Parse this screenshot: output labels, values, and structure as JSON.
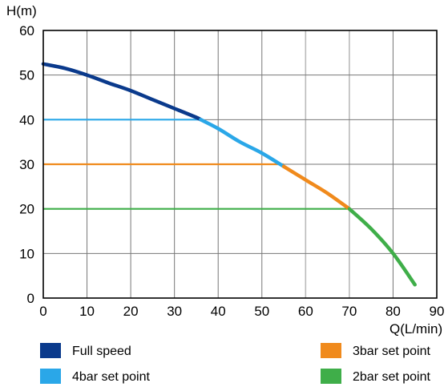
{
  "chart_data": {
    "type": "line",
    "xlabel": "Q(L/min)",
    "ylabel": "H(m)",
    "xlim": [
      0,
      90
    ],
    "ylim": [
      0,
      60
    ],
    "xticks": [
      0,
      10,
      20,
      30,
      40,
      50,
      60,
      70,
      80,
      90
    ],
    "yticks": [
      0,
      10,
      20,
      30,
      40,
      50,
      60
    ],
    "grid": true,
    "legend_position": "bottom",
    "colors": {
      "full_speed": "#0a3a8c",
      "bar4": "#2aa7e8",
      "bar3": "#f08a1c",
      "bar2": "#3fae49",
      "grid": "#777777",
      "grid_light": "#bbbbbb"
    },
    "curve": {
      "x": [
        0,
        5,
        10,
        15,
        20,
        25,
        30,
        35,
        40,
        45,
        50,
        55,
        60,
        65,
        70,
        75,
        80,
        85
      ],
      "y": [
        52.5,
        51.5,
        50.0,
        48.2,
        46.5,
        44.5,
        42.5,
        40.5,
        38.0,
        35.0,
        32.5,
        29.5,
        26.5,
        23.5,
        20.0,
        15.5,
        10.0,
        3.0
      ]
    },
    "series": [
      {
        "name": "Full speed",
        "key": "full_speed",
        "x_range": [
          0,
          36
        ]
      },
      {
        "name": "4bar set point",
        "key": "bar4",
        "x_range": [
          36,
          55
        ],
        "constant_head": 40,
        "constant_x_range": [
          0,
          36
        ]
      },
      {
        "name": "3bar set point",
        "key": "bar3",
        "x_range": [
          55,
          70
        ],
        "constant_head": 30,
        "constant_x_range": [
          0,
          55
        ]
      },
      {
        "name": "2bar set point",
        "key": "bar2",
        "x_range": [
          70,
          85
        ],
        "constant_head": 20,
        "constant_x_range": [
          0,
          70
        ]
      }
    ],
    "legend": [
      {
        "label": "Full speed",
        "key": "full_speed"
      },
      {
        "label": "3bar set point",
        "key": "bar3"
      },
      {
        "label": "4bar set point",
        "key": "bar4"
      },
      {
        "label": "2bar set point",
        "key": "bar2"
      }
    ]
  }
}
